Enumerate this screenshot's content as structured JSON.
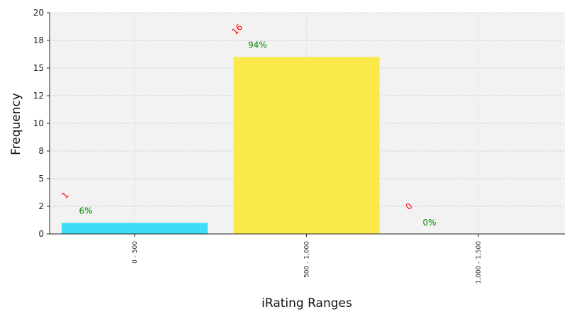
{
  "chart_data": {
    "type": "bar",
    "title": "",
    "xlabel": "iRating Ranges",
    "ylabel": "Frequency",
    "categories": [
      "0 - 500",
      "500 - 1,000",
      "1,000 - 1,500"
    ],
    "values": [
      1,
      16,
      0
    ],
    "count_labels": [
      "1",
      "16",
      "0"
    ],
    "percent_labels": [
      "6%",
      "94%",
      "0%"
    ],
    "bar_colors": [
      "#40dcf7",
      "#fbe84b",
      "#8fd47a"
    ],
    "count_label_color": "#ff0000",
    "percent_label_color": "#008000",
    "ylim": [
      0,
      20
    ],
    "yticks": [
      0,
      2.5,
      5,
      7.5,
      10,
      12.5,
      15,
      17.5,
      20
    ],
    "ytick_labels": [
      "0",
      "2",
      "5",
      "8",
      "10",
      "12",
      "15",
      "18",
      "20"
    ],
    "grid": true,
    "background": "#f2f2f2"
  }
}
